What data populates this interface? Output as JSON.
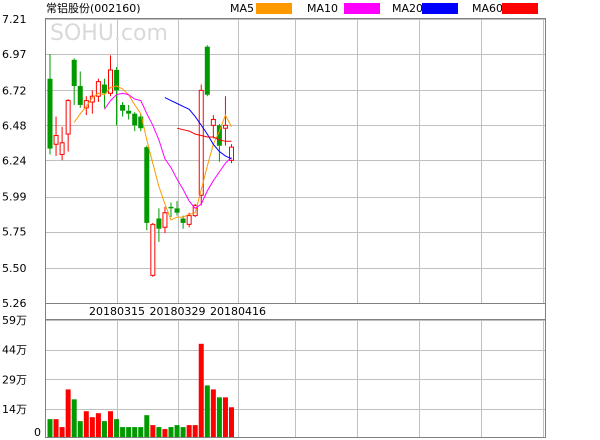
{
  "header": {
    "title": "常铝股份(002160)",
    "legend": [
      {
        "label": "MA5",
        "color": "#ff9900"
      },
      {
        "label": "MA10",
        "color": "#ff00ff"
      },
      {
        "label": "MA20",
        "color": "#0000ff"
      },
      {
        "label": "MA60",
        "color": "#ff0000"
      }
    ]
  },
  "watermark": "SOHU.com",
  "colors": {
    "up": "#ff0000",
    "down": "#009900",
    "grid": "#c0c0c0",
    "axis": "#808080"
  },
  "chart_data": [
    {
      "type": "candlestick",
      "title": "常铝股份(002160)",
      "ylim": [
        5.26,
        7.21
      ],
      "y_ticks": [
        "7.21",
        "6.97",
        "6.72",
        "6.48",
        "6.24",
        "5.99",
        "5.75",
        "5.50",
        "5.26"
      ],
      "x_tick_labels": [
        "20180315",
        "20180329",
        "20180416"
      ],
      "x_tick_index": [
        11,
        21,
        31
      ],
      "ohlc": [
        [
          6.8,
          6.97,
          6.28,
          6.32
        ],
        [
          6.35,
          6.54,
          6.27,
          6.41
        ],
        [
          6.28,
          6.47,
          6.24,
          6.36
        ],
        [
          6.42,
          6.66,
          6.3,
          6.65
        ],
        [
          6.93,
          6.94,
          6.62,
          6.75
        ],
        [
          6.75,
          6.85,
          6.6,
          6.62
        ],
        [
          6.6,
          6.68,
          6.55,
          6.65
        ],
        [
          6.64,
          6.72,
          6.56,
          6.68
        ],
        [
          6.68,
          6.8,
          6.64,
          6.78
        ],
        [
          6.76,
          6.8,
          6.6,
          6.7
        ],
        [
          6.7,
          6.96,
          6.68,
          6.86
        ],
        [
          6.86,
          6.88,
          6.48,
          6.72
        ],
        [
          6.62,
          6.64,
          6.54,
          6.58
        ],
        [
          6.58,
          6.62,
          6.52,
          6.56
        ],
        [
          6.56,
          6.57,
          6.44,
          6.48
        ],
        [
          6.54,
          6.56,
          6.44,
          6.46
        ],
        [
          6.33,
          6.34,
          5.76,
          5.81
        ],
        [
          5.45,
          5.81,
          5.44,
          5.8
        ],
        [
          5.84,
          5.91,
          5.68,
          5.77
        ],
        [
          5.78,
          5.92,
          5.74,
          5.88
        ],
        [
          5.92,
          5.95,
          5.85,
          5.91
        ],
        [
          5.91,
          5.96,
          5.86,
          5.88
        ],
        [
          5.84,
          5.86,
          5.77,
          5.81
        ],
        [
          5.8,
          5.88,
          5.78,
          5.86
        ],
        [
          5.86,
          5.94,
          5.85,
          5.93
        ],
        [
          6.0,
          6.76,
          5.93,
          6.72
        ],
        [
          7.02,
          7.03,
          6.68,
          6.69
        ],
        [
          6.48,
          6.55,
          6.39,
          6.52
        ],
        [
          6.48,
          6.49,
          6.23,
          6.34
        ],
        [
          6.46,
          6.68,
          6.34,
          6.48
        ],
        [
          6.24,
          6.35,
          6.22,
          6.33
        ]
      ],
      "series": [
        {
          "name": "MA5",
          "color": "#ff9900",
          "values": [
            null,
            null,
            null,
            null,
            6.5,
            6.56,
            6.61,
            6.67,
            6.7,
            6.69,
            6.74,
            6.75,
            6.73,
            6.69,
            6.62,
            6.56,
            6.38,
            6.22,
            6.06,
            5.94,
            5.83,
            5.85,
            5.85,
            5.87,
            5.88,
            6.04,
            6.2,
            6.35,
            6.44,
            6.55,
            6.47
          ]
        },
        {
          "name": "MA10",
          "color": "#ff00ff",
          "values": [
            null,
            null,
            null,
            null,
            null,
            null,
            null,
            null,
            null,
            6.59,
            6.65,
            6.69,
            6.7,
            6.69,
            6.66,
            6.65,
            6.56,
            6.48,
            6.38,
            6.25,
            6.19,
            6.11,
            6.04,
            5.96,
            5.91,
            5.94,
            6.03,
            6.1,
            6.16,
            6.22,
            6.26
          ]
        },
        {
          "name": "MA20",
          "color": "#0000ff",
          "values": [
            null,
            null,
            null,
            null,
            null,
            null,
            null,
            null,
            null,
            null,
            null,
            null,
            null,
            null,
            null,
            null,
            null,
            null,
            null,
            6.67,
            6.65,
            6.63,
            6.61,
            6.59,
            6.54,
            6.48,
            6.42,
            6.35,
            6.3,
            6.27,
            6.25
          ]
        },
        {
          "name": "MA60",
          "color": "#ff0000",
          "values": [
            null,
            null,
            null,
            null,
            null,
            null,
            null,
            null,
            null,
            null,
            null,
            null,
            null,
            null,
            null,
            null,
            null,
            null,
            null,
            null,
            null,
            6.46,
            6.45,
            6.44,
            6.42,
            6.41,
            6.4,
            6.4,
            6.38,
            6.37,
            6.37
          ]
        }
      ]
    },
    {
      "type": "bar",
      "title": "",
      "ylim": [
        0,
        59
      ],
      "y_ticks": [
        "59万",
        "44万",
        "29万",
        "14万",
        "0"
      ],
      "y_tick_values": [
        59,
        44,
        29,
        14,
        0
      ],
      "values": [
        9,
        9,
        5,
        24,
        19,
        8,
        13,
        10,
        12,
        8,
        13,
        9,
        5,
        5,
        5,
        5,
        11,
        6,
        5,
        4,
        5,
        6,
        5,
        6,
        6,
        47,
        26,
        24,
        20,
        20,
        15
      ],
      "colors": [
        "down",
        "up",
        "up",
        "up",
        "down",
        "down",
        "up",
        "up",
        "up",
        "down",
        "up",
        "down",
        "down",
        "down",
        "down",
        "down",
        "down",
        "up",
        "down",
        "up",
        "down",
        "down",
        "down",
        "up",
        "up",
        "up",
        "down",
        "up",
        "down",
        "up",
        "up"
      ]
    }
  ]
}
